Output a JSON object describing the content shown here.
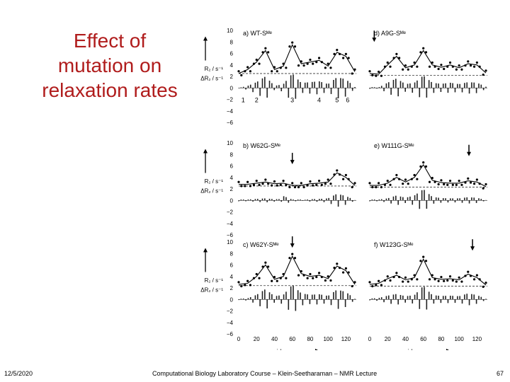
{
  "slide": {
    "title_lines": [
      "Effect of",
      "mutation on",
      "relaxation rates"
    ],
    "date": "12/5/2020",
    "footer_text": "Computational Biology Laboratory Course – Klein-Seetharaman – NMR Lecture",
    "page_number": "67",
    "title_color": "#b01c1c"
  },
  "figure": {
    "y_label_top": "R₂ / s⁻¹",
    "y_label_bottom": "ΔR₂ / s⁻¹",
    "x_axis_label": "residues",
    "y_ticks": [
      "10",
      "8",
      "6",
      "4",
      "2",
      "0",
      "−2",
      "−4",
      "−6"
    ],
    "x_ticks": [
      "0",
      "20",
      "40",
      "60",
      "80",
      "100",
      "120"
    ],
    "region_labels": [
      "1",
      "2",
      "3",
      "4",
      "5",
      "6"
    ]
  },
  "chart_data": [
    {
      "type": "line",
      "title": "a) WT-Sᴹᵉ",
      "arrow_residue": null,
      "x": [
        0,
        10,
        20,
        30,
        40,
        50,
        60,
        70,
        80,
        90,
        100,
        110,
        120,
        130
      ],
      "y": [
        2.5,
        3.2,
        4.5,
        6.5,
        3.2,
        3.8,
        7.5,
        4.2,
        4.5,
        4.8,
        3.8,
        6.2,
        5.5,
        2.8
      ],
      "baseline": 2.5,
      "ylim": [
        -6,
        10
      ],
      "xlim": [
        0,
        130
      ]
    },
    {
      "type": "line",
      "title": "d) A9G-Sᴹᵉ",
      "arrow_residue": 5,
      "x": [
        0,
        10,
        20,
        30,
        40,
        50,
        60,
        70,
        80,
        90,
        100,
        110,
        120,
        130
      ],
      "y": [
        2.5,
        2.4,
        4.0,
        5.5,
        3.5,
        4.0,
        6.5,
        4.0,
        3.6,
        4.0,
        3.5,
        4.2,
        4.0,
        2.6
      ],
      "baseline": 2.2,
      "ylim": [
        -6,
        10
      ],
      "xlim": [
        0,
        130
      ]
    },
    {
      "type": "line",
      "title": "b) W62G-Sᴹᵉ",
      "arrow_residue": 60,
      "x": [
        0,
        10,
        20,
        30,
        40,
        50,
        60,
        70,
        80,
        90,
        100,
        110,
        120,
        130
      ],
      "y": [
        2.8,
        2.8,
        3.0,
        3.2,
        2.9,
        3.0,
        2.6,
        2.6,
        2.9,
        3.0,
        3.2,
        4.8,
        4.0,
        2.6
      ],
      "baseline": 2.5,
      "ylim": [
        -6,
        10
      ],
      "xlim": [
        0,
        130
      ]
    },
    {
      "type": "line",
      "title": "e) W111G-Sᴹᵉ",
      "arrow_residue": 111,
      "x": [
        0,
        10,
        20,
        30,
        40,
        50,
        60,
        70,
        80,
        90,
        100,
        110,
        120,
        130
      ],
      "y": [
        2.6,
        2.6,
        3.0,
        4.0,
        3.2,
        4.0,
        6.2,
        3.5,
        3.1,
        3.0,
        3.0,
        3.4,
        3.2,
        2.4
      ],
      "baseline": 2.3,
      "ylim": [
        -6,
        10
      ],
      "xlim": [
        0,
        130
      ]
    },
    {
      "type": "line",
      "title": "c) W62Y-Sᴹᵉ",
      "arrow_residue": 60,
      "x": [
        0,
        10,
        20,
        30,
        40,
        50,
        60,
        70,
        80,
        90,
        100,
        110,
        120,
        130
      ],
      "y": [
        2.6,
        2.8,
        4.0,
        6.0,
        3.5,
        4.0,
        7.5,
        4.5,
        4.0,
        4.2,
        3.6,
        5.8,
        5.0,
        2.6
      ],
      "baseline": 2.4,
      "ylim": [
        -6,
        10
      ],
      "xlim": [
        0,
        130
      ]
    },
    {
      "type": "line",
      "title": "f) W123G-Sᴹᵉ",
      "arrow_residue": 115,
      "x": [
        0,
        10,
        20,
        30,
        40,
        50,
        60,
        70,
        80,
        90,
        100,
        110,
        120,
        130
      ],
      "y": [
        2.6,
        2.8,
        3.6,
        4.2,
        3.4,
        3.8,
        7.0,
        3.8,
        3.5,
        3.6,
        3.4,
        4.4,
        3.8,
        2.5
      ],
      "baseline": 2.3,
      "ylim": [
        -6,
        10
      ],
      "xlim": [
        0,
        130
      ]
    }
  ]
}
